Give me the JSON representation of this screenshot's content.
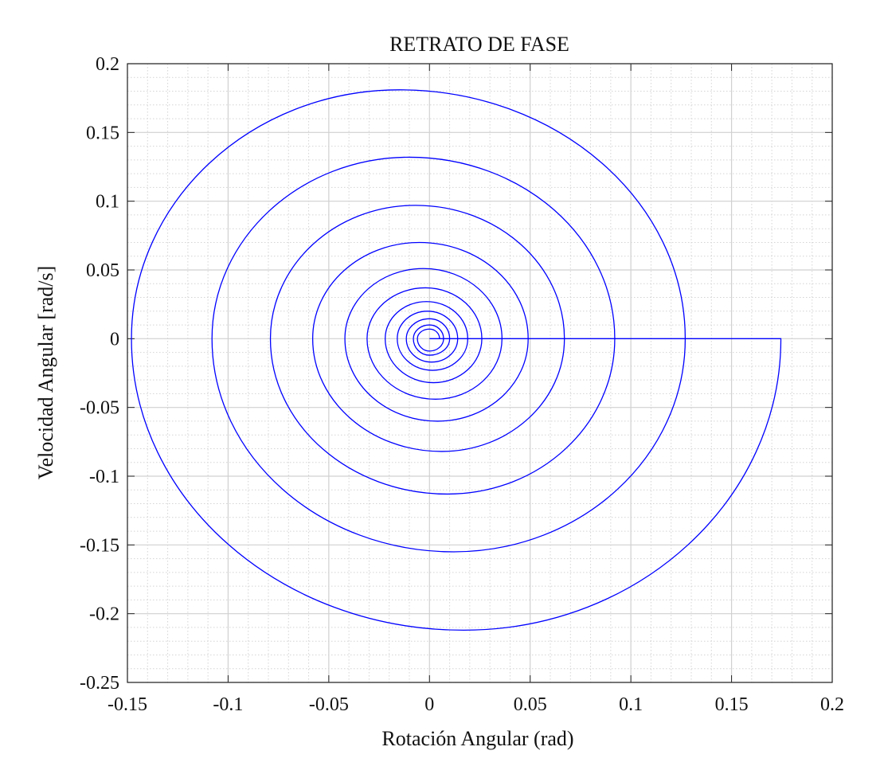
{
  "chart_data": {
    "type": "line",
    "title": "RETRATO DE FASE",
    "x_label": "Rotación Angular (rad)",
    "y_label": "Velocidad Angular [rad/s]",
    "series": [
      {
        "color": "#0000ff",
        "x": [
          0,
          0.1745,
          0.017,
          -0.148,
          -0.015,
          0.127,
          0.012,
          -0.108,
          -0.01,
          0.092,
          0.009,
          -0.079,
          -0.007,
          0.067,
          0.006,
          -0.058,
          -0.005,
          0.049,
          0.004,
          -0.042,
          -0.003,
          0.036,
          0.003,
          -0.031,
          -0.002,
          0.026,
          0.002,
          -0.022,
          -0.0015,
          0.019,
          0.0015,
          -0.016,
          -0.001,
          0.014,
          0.001,
          -0.0115,
          0,
          0.01,
          0,
          -0.008,
          0,
          0.007,
          0,
          -0.006,
          0,
          0.005
        ],
        "values": [
          0,
          0,
          -0.212,
          0,
          0.181,
          0,
          -0.155,
          0,
          0.132,
          0,
          -0.113,
          0,
          0.097,
          0,
          -0.082,
          0,
          0.07,
          0,
          -0.06,
          0,
          0.051,
          0,
          -0.044,
          0,
          0.037,
          0,
          -0.032,
          0,
          0.027,
          0,
          -0.023,
          0,
          0.02,
          0,
          -0.017,
          0,
          0.0145,
          0,
          -0.012,
          0,
          0.01,
          0,
          -0.009,
          0,
          0.007,
          0
        ]
      }
    ],
    "xlim": [
      -0.15,
      0.2
    ],
    "ylim": [
      -0.25,
      0.2
    ],
    "xticks": [
      -0.15,
      -0.1,
      -0.05,
      0,
      0.05,
      0.1,
      0.15,
      0.2
    ],
    "yticks": [
      -0.25,
      -0.2,
      -0.15,
      -0.1,
      -0.05,
      0,
      0.05,
      0.1,
      0.15,
      0.2
    ],
    "grid": true,
    "minor_divisions": 5
  }
}
